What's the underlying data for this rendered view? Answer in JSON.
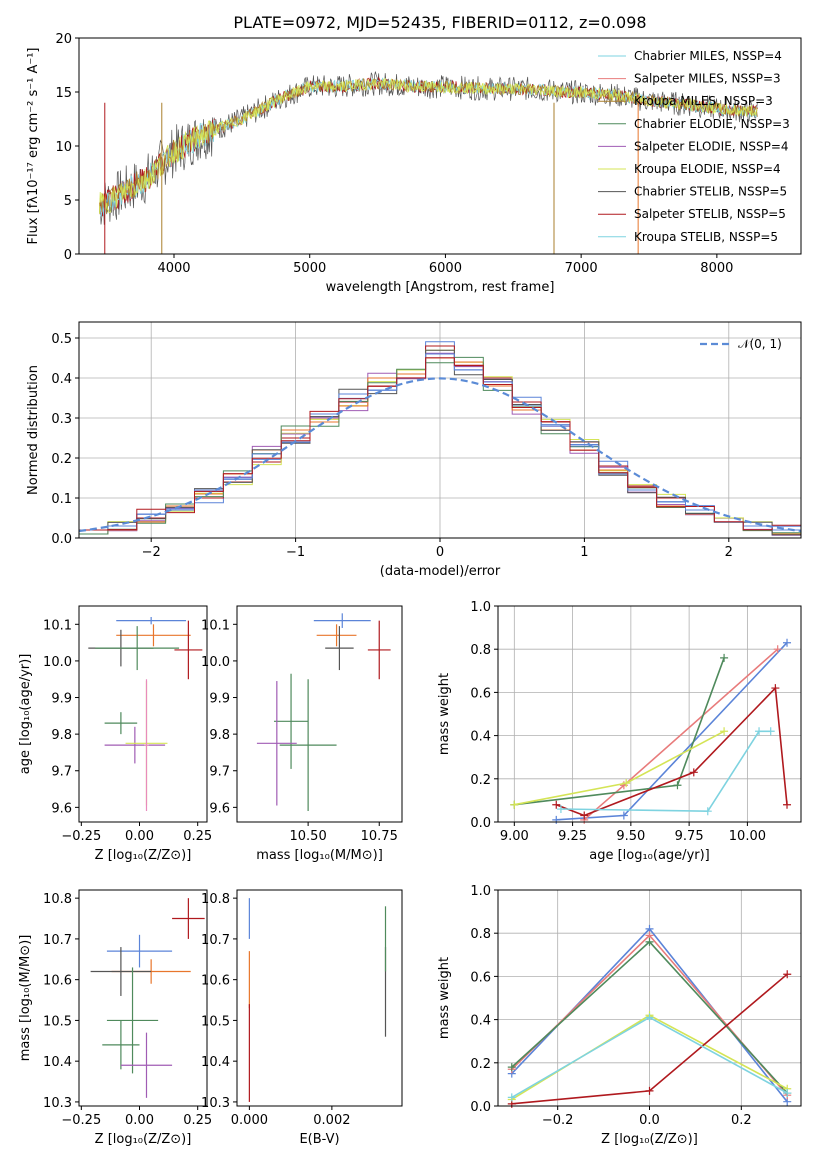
{
  "figure": {
    "title": "PLATE=0972, MJD=52435, FIBERID=0112, z=0.098"
  },
  "colors": [
    "#5b84d8",
    "#e8762c",
    "#4f8a5c",
    "#a05cb4",
    "#d4e456",
    "#555555",
    "#b0191e",
    "#e88bbd",
    "#7ed3e0",
    "#a97f2c"
  ],
  "panels": [
    {
      "id": "spectrum",
      "xlabel": "wavelength [Angstrom, rest frame]",
      "ylabel": "Flux [fλ10⁻¹⁷ erg cm⁻² s⁻¹ A⁻¹]",
      "xlim": [
        3300,
        8620
      ],
      "ylim": [
        0,
        20
      ],
      "xticks": [
        4000,
        5000,
        6000,
        7000,
        8000
      ],
      "yticks": [
        0,
        5,
        10,
        15,
        20
      ],
      "legend": [
        {
          "label": "Chabrier MILES, NSSP=4",
          "color": "#7ed3e0"
        },
        {
          "label": "Salpeter MILES, NSSP=3",
          "color": "#e87b7b"
        },
        {
          "label": "Kroupa MILES, NSSP=3",
          "color": "#a97f2c"
        },
        {
          "label": "Chabrier ELODIE, NSSP=3",
          "color": "#4f8a5c"
        },
        {
          "label": "Salpeter ELODIE, NSSP=4",
          "color": "#a05cb4"
        },
        {
          "label": "Kroupa ELODIE, NSSP=4",
          "color": "#d4e456"
        },
        {
          "label": "Chabrier STELIB, NSSP=5",
          "color": "#555555"
        },
        {
          "label": "Salpeter STELIB, NSSP=5",
          "color": "#b0191e"
        },
        {
          "label": "Kroupa STELIB, NSSP=5",
          "color": "#7ed3e0"
        }
      ]
    },
    {
      "id": "residuals",
      "xlabel": "(data-model)/error",
      "ylabel": "Normed distribution",
      "xlim": [
        -2.5,
        2.5
      ],
      "ylim": [
        0,
        0.54
      ],
      "xticks": [
        -2,
        -1,
        0,
        1,
        2
      ],
      "yticks": [
        0.0,
        0.1,
        0.2,
        0.3,
        0.4,
        0.5
      ],
      "legend_label": "𝒩(0, 1)"
    },
    {
      "id": "z_age",
      "xlabel": "Z [log₁₀(Z/Z⊙)]",
      "ylabel": "age  [log₁₀(age/yr)]",
      "xlim": [
        -0.26,
        0.29
      ],
      "ylim": [
        9.56,
        10.15
      ],
      "xticks": [
        -0.25,
        0.0,
        0.25
      ],
      "yticks": [
        9.6,
        9.7,
        9.8,
        9.9,
        10.0,
        10.1
      ]
    },
    {
      "id": "mass_age",
      "xlabel": "mass [log₁₀(M/M⊙)]",
      "ylabel": "",
      "xlim": [
        10.25,
        10.83
      ],
      "ylim": [
        9.56,
        10.15
      ],
      "xticks": [
        10.5,
        10.75
      ],
      "yticks": [
        9.6,
        9.7,
        9.8,
        9.9,
        10.0,
        10.1
      ]
    },
    {
      "id": "age_weight",
      "xlabel": "age  [log₁₀(age/yr)]",
      "ylabel": "mass weight",
      "xlim": [
        8.93,
        10.23
      ],
      "ylim": [
        0,
        1
      ],
      "xticks": [
        9.0,
        9.25,
        9.5,
        9.75,
        10.0
      ],
      "yticks": [
        0.0,
        0.2,
        0.4,
        0.6,
        0.8,
        1.0
      ]
    },
    {
      "id": "z_mass",
      "xlabel": "Z [log₁₀(Z/Z⊙)]",
      "ylabel": "mass [log₁₀(M/M⊙)]",
      "xlim": [
        -0.26,
        0.29
      ],
      "ylim": [
        10.29,
        10.82
      ],
      "xticks": [
        -0.25,
        0.0,
        0.25
      ],
      "yticks": [
        10.3,
        10.4,
        10.5,
        10.6,
        10.7,
        10.8
      ]
    },
    {
      "id": "ebv_mass",
      "xlabel": "E(B-V)",
      "ylabel": "",
      "xlim": [
        -0.0003,
        0.0037
      ],
      "ylim": [
        10.29,
        10.82
      ],
      "xticks": [
        0.0,
        0.002
      ],
      "yticks": [
        10.3,
        10.4,
        10.5,
        10.6,
        10.7,
        10.8
      ]
    },
    {
      "id": "z_weight",
      "xlabel": "Z [log₁₀(Z/Z⊙)]",
      "ylabel": "mass weight",
      "xlim": [
        -0.33,
        0.33
      ],
      "ylim": [
        0,
        1
      ],
      "xticks": [
        -0.2,
        0.0,
        0.2
      ],
      "yticks": [
        0.0,
        0.2,
        0.4,
        0.6,
        0.8,
        1.0
      ]
    }
  ],
  "chart_data": [
    {
      "type": "line",
      "title": "PLATE=0972, MJD=52435, FIBERID=0112, z=0.098",
      "xlabel": "wavelength [Angstrom, rest frame]",
      "ylabel": "Flux",
      "series": [
        {
          "name": "Chabrier STELIB, NSSP=5",
          "x": [
            3450,
            3600,
            3800,
            4000,
            4200,
            4500,
            4800,
            5000,
            5200,
            5500,
            5800,
            6000,
            6300,
            6600,
            6900,
            7200,
            7500,
            7800,
            8100,
            8300
          ],
          "values": [
            4.5,
            5.5,
            7,
            9.5,
            11,
            12.5,
            14.5,
            15.5,
            15.5,
            15.8,
            15.5,
            15.5,
            15.3,
            15.3,
            15,
            14.8,
            14.2,
            13.8,
            13.3,
            13.2
          ]
        }
      ],
      "xlim": [
        3300,
        8620
      ],
      "ylim": [
        0,
        20
      ]
    },
    {
      "type": "bar",
      "title": "",
      "xlabel": "(data-model)/error",
      "ylabel": "Normed distribution",
      "bin_edges": [
        -2.5,
        -2.3,
        -2.1,
        -1.9,
        -1.7,
        -1.5,
        -1.3,
        -1.1,
        -0.9,
        -0.7,
        -0.5,
        -0.3,
        -0.1,
        0.1,
        0.3,
        0.5,
        0.7,
        0.9,
        1.1,
        1.3,
        1.5,
        1.7,
        1.9,
        2.1,
        2.3,
        2.5
      ],
      "series": [
        {
          "values": [
            0.02,
            0.03,
            0.05,
            0.07,
            0.1,
            0.14,
            0.19,
            0.25,
            0.3,
            0.34,
            0.38,
            0.42,
            0.48,
            0.43,
            0.4,
            0.34,
            0.29,
            0.24,
            0.18,
            0.13,
            0.1,
            0.07,
            0.05,
            0.03,
            0.02
          ]
        },
        {
          "values": [
            0.01,
            0.02,
            0.04,
            0.08,
            0.11,
            0.16,
            0.22,
            0.27,
            0.29,
            0.33,
            0.4,
            0.41,
            0.45,
            0.44,
            0.38,
            0.32,
            0.27,
            0.22,
            0.17,
            0.12,
            0.08,
            0.06,
            0.04,
            0.02,
            0.01
          ]
        },
        {
          "values": [
            0.02,
            0.03,
            0.06,
            0.07,
            0.12,
            0.15,
            0.21,
            0.24,
            0.31,
            0.36,
            0.37,
            0.4,
            0.46,
            0.42,
            0.39,
            0.33,
            0.28,
            0.23,
            0.16,
            0.12,
            0.09,
            0.07,
            0.04,
            0.03,
            0.02
          ]
        }
      ],
      "normal_curve": {
        "mean": 0,
        "std": 1
      },
      "xlim": [
        -2.5,
        2.5
      ],
      "ylim": [
        0,
        0.54
      ]
    },
    {
      "type": "scatter",
      "title": "",
      "xlabel": "Z [log10(Z/Z⊙)]",
      "ylabel": "age  [log10(age/yr)]",
      "points": [
        {
          "x": 0.05,
          "y": 10.11,
          "xerr": 0.15,
          "yerr": 0.01
        },
        {
          "x": 0.06,
          "y": 10.07,
          "xerr": 0.16,
          "yerr": 0.03
        },
        {
          "x": 0.21,
          "y": 10.03,
          "xerr": 0.06,
          "yerr": 0.08
        },
        {
          "x": -0.08,
          "y": 10.035,
          "xerr": 0.14,
          "yerr": 0.05
        },
        {
          "x": -0.01,
          "y": 10.035,
          "xerr": 0.18,
          "yerr": 0.06
        },
        {
          "x": -0.08,
          "y": 9.83,
          "xerr": 0.07,
          "yerr": 0.03
        },
        {
          "x": -0.02,
          "y": 9.77,
          "xerr": 0.13,
          "yerr": 0.05
        },
        {
          "x": 0.03,
          "y": 9.775,
          "xerr": 0.09,
          "yerr": 0.17
        },
        {
          "x": 0.03,
          "y": 9.77,
          "xerr": 0.01,
          "yerr": 0.18
        }
      ],
      "xlim": [
        -0.26,
        0.29
      ],
      "ylim": [
        9.56,
        10.15
      ]
    },
    {
      "type": "scatter",
      "title": "",
      "xlabel": "mass [log10(M/M⊙)]",
      "ylabel": "",
      "points": [
        {
          "x": 10.62,
          "y": 10.11,
          "xerr": 0.1,
          "yerr": 0.02
        },
        {
          "x": 10.6,
          "y": 10.07,
          "xerr": 0.07,
          "yerr": 0.03
        },
        {
          "x": 10.75,
          "y": 10.03,
          "xerr": 0.04,
          "yerr": 0.08
        },
        {
          "x": 10.61,
          "y": 10.035,
          "xerr": 0.05,
          "yerr": 0.06
        },
        {
          "x": 10.44,
          "y": 9.835,
          "xerr": 0.06,
          "yerr": 0.13
        },
        {
          "x": 10.5,
          "y": 9.77,
          "xerr": 0.1,
          "yerr": 0.18
        },
        {
          "x": 10.39,
          "y": 9.775,
          "xerr": 0.07,
          "yerr": 0.17
        }
      ],
      "xlim": [
        10.25,
        10.83
      ],
      "ylim": [
        9.56,
        10.15
      ]
    },
    {
      "type": "line",
      "title": "",
      "xlabel": "age  [log10(age/yr)]",
      "ylabel": "mass weight",
      "series": [
        {
          "x": [
            9.18,
            9.47,
            10.17
          ],
          "values": [
            0.01,
            0.03,
            0.83
          ]
        },
        {
          "x": [
            9.3,
            9.47,
            10.13
          ],
          "values": [
            0.01,
            0.17,
            0.8
          ]
        },
        {
          "x": [
            9.0,
            9.7,
            9.9
          ],
          "values": [
            0.08,
            0.17,
            0.76
          ]
        },
        {
          "x": [
            9.0,
            9.48,
            9.9
          ],
          "values": [
            0.08,
            0.18,
            0.42
          ]
        },
        {
          "x": [
            9.18,
            9.3,
            9.77,
            10.12,
            10.17
          ],
          "values": [
            0.08,
            0.03,
            0.23,
            0.62,
            0.08
          ]
        },
        {
          "x": [
            9.2,
            9.83,
            10.05,
            10.1
          ],
          "values": [
            0.06,
            0.05,
            0.42,
            0.42
          ]
        }
      ],
      "xlim": [
        8.93,
        10.23
      ],
      "ylim": [
        0,
        1
      ]
    },
    {
      "type": "scatter",
      "title": "",
      "xlabel": "Z [log10(Z/Z⊙)]",
      "ylabel": "mass [log10(M/M⊙)]",
      "points": [
        {
          "x": 0.0,
          "y": 10.67,
          "xerr": 0.14,
          "yerr": 0.04
        },
        {
          "x": 0.05,
          "y": 10.62,
          "xerr": 0.17,
          "yerr": 0.03
        },
        {
          "x": 0.21,
          "y": 10.75,
          "xerr": 0.07,
          "yerr": 0.05
        },
        {
          "x": -0.08,
          "y": 10.62,
          "xerr": 0.13,
          "yerr": 0.06
        },
        {
          "x": -0.08,
          "y": 10.44,
          "xerr": 0.08,
          "yerr": 0.06
        },
        {
          "x": -0.03,
          "y": 10.5,
          "xerr": 0.11,
          "yerr": 0.13
        },
        {
          "x": 0.03,
          "y": 10.39,
          "xerr": 0.11,
          "yerr": 0.08
        }
      ],
      "xlim": [
        -0.26,
        0.29
      ],
      "ylim": [
        10.29,
        10.82
      ]
    },
    {
      "type": "scatter",
      "title": "",
      "xlabel": "E(B-V)",
      "ylabel": "",
      "points": [
        {
          "x": 0.0,
          "y": 10.75,
          "xerr": 0,
          "yerr": 0.05
        },
        {
          "x": 0.0,
          "y": 10.6,
          "xerr": 0,
          "yerr": 0.07
        },
        {
          "x": 0.0,
          "y": 10.42,
          "xerr": 0,
          "yerr": 0.12
        },
        {
          "x": 0.0033,
          "y": 10.57,
          "xerr": 0,
          "yerr": 0.11
        },
        {
          "x": 0.0033,
          "y": 10.7,
          "xerr": 0,
          "yerr": 0.08
        }
      ],
      "xlim": [
        -0.0003,
        0.0037
      ],
      "ylim": [
        10.29,
        10.82
      ]
    },
    {
      "type": "line",
      "title": "",
      "xlabel": "Z [log10(Z/Z⊙)]",
      "ylabel": "mass weight",
      "series": [
        {
          "x": [
            -0.3,
            0.0,
            0.3
          ],
          "values": [
            0.15,
            0.82,
            0.02
          ]
        },
        {
          "x": [
            -0.3,
            0.0,
            0.3
          ],
          "values": [
            0.17,
            0.79,
            0.05
          ]
        },
        {
          "x": [
            -0.3,
            0.0,
            0.3
          ],
          "values": [
            0.18,
            0.76,
            0.06
          ]
        },
        {
          "x": [
            -0.3,
            0.0,
            0.3
          ],
          "values": [
            0.03,
            0.42,
            0.08
          ]
        },
        {
          "x": [
            -0.3,
            0.0,
            0.3
          ],
          "values": [
            0.01,
            0.07,
            0.61
          ]
        },
        {
          "x": [
            -0.3,
            0.0,
            0.3
          ],
          "values": [
            0.04,
            0.41,
            0.06
          ]
        }
      ],
      "xlim": [
        -0.33,
        0.33
      ],
      "ylim": [
        0,
        1
      ]
    }
  ]
}
